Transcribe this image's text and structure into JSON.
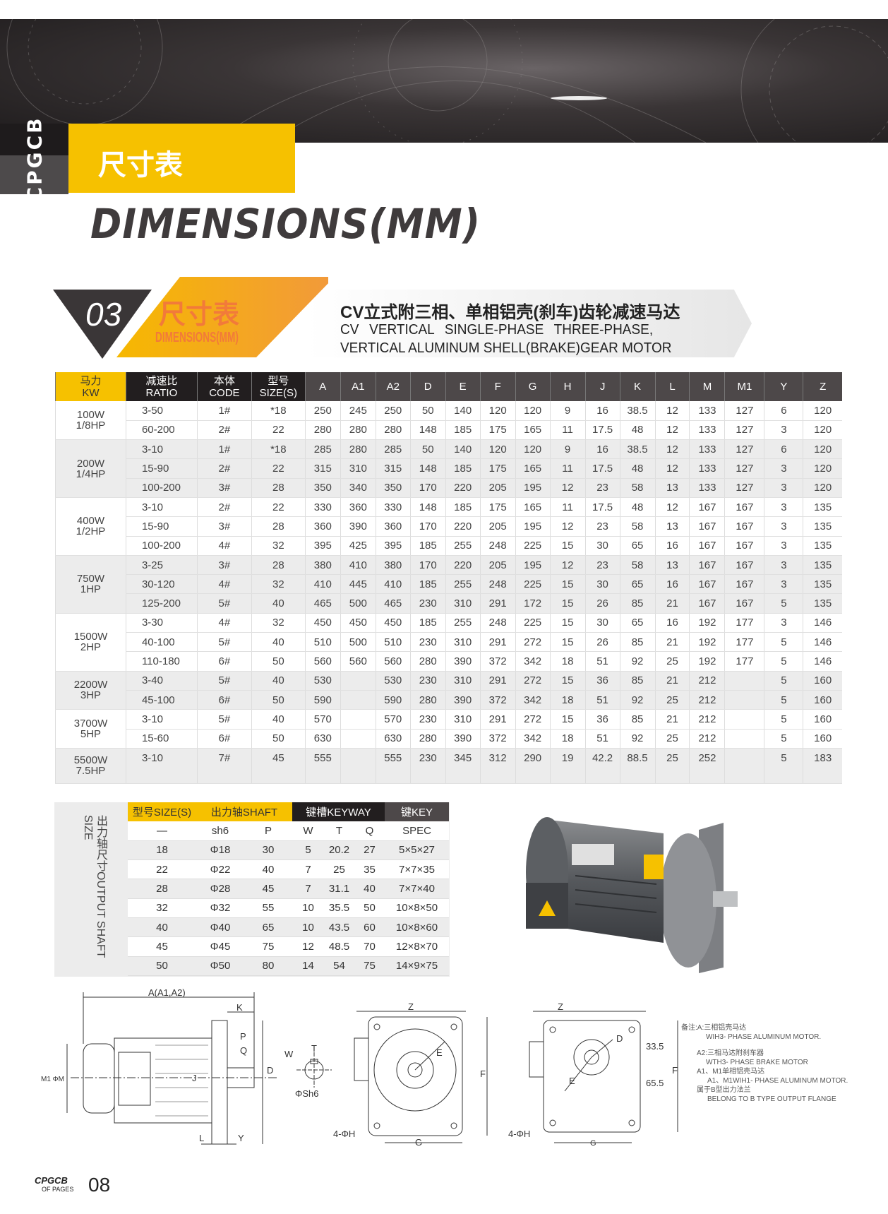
{
  "brand": "CPGCB",
  "header": {
    "title_cn": "尺寸表",
    "title_en": "DIMENSIONS(MM)"
  },
  "section": {
    "number": "03",
    "title_cn": "尺寸表",
    "title_en": "DIMENSIONS(MM)",
    "product_cn": "CV立式附三相、单相铝壳(刹车)齿轮减速马达",
    "product_en_1": "CV VERTICAL SINGLE-PHASE THREE-PHASE,",
    "product_en_2": "VERTICAL ALUMINUM SHELL(BRAKE)GEAR MOTOR"
  },
  "colors": {
    "accent": "#f6c100",
    "dark": "#221e1f",
    "header_gray": "#4d4849",
    "orange": "#f27a3a",
    "row_gray": "#ececec"
  },
  "main_table": {
    "headers": [
      {
        "cn": "马力",
        "en": "KW"
      },
      {
        "cn": "减速比",
        "en": "RATIO"
      },
      {
        "cn": "本体",
        "en": "CODE"
      },
      {
        "cn": "型号",
        "en": "SIZE(S)"
      },
      {
        "en": "A"
      },
      {
        "en": "A1"
      },
      {
        "en": "A2"
      },
      {
        "en": "D"
      },
      {
        "en": "E"
      },
      {
        "en": "F"
      },
      {
        "en": "G"
      },
      {
        "en": "H"
      },
      {
        "en": "J"
      },
      {
        "en": "K"
      },
      {
        "en": "L"
      },
      {
        "en": "M"
      },
      {
        "en": "M1"
      },
      {
        "en": "Y"
      },
      {
        "en": "Z"
      }
    ],
    "groups": [
      {
        "power": "100W",
        "hp": "1/8HP",
        "rows": [
          [
            "3-50",
            "1#",
            "*18",
            "250",
            "245",
            "250",
            "50",
            "140",
            "120",
            "120",
            "9",
            "16",
            "38.5",
            "12",
            "133",
            "127",
            "6",
            "120"
          ],
          [
            "60-200",
            "2#",
            "22",
            "280",
            "280",
            "280",
            "148",
            "185",
            "175",
            "165",
            "11",
            "17.5",
            "48",
            "12",
            "133",
            "127",
            "3",
            "120"
          ]
        ]
      },
      {
        "power": "200W",
        "hp": "1/4HP",
        "rows": [
          [
            "3-10",
            "1#",
            "*18",
            "285",
            "280",
            "285",
            "50",
            "140",
            "120",
            "120",
            "9",
            "16",
            "38.5",
            "12",
            "133",
            "127",
            "6",
            "120"
          ],
          [
            "15-90",
            "2#",
            "22",
            "315",
            "310",
            "315",
            "148",
            "185",
            "175",
            "165",
            "11",
            "17.5",
            "48",
            "12",
            "133",
            "127",
            "3",
            "120"
          ],
          [
            "100-200",
            "3#",
            "28",
            "350",
            "340",
            "350",
            "170",
            "220",
            "205",
            "195",
            "12",
            "23",
            "58",
            "13",
            "133",
            "127",
            "3",
            "120"
          ]
        ]
      },
      {
        "power": "400W",
        "hp": "1/2HP",
        "rows": [
          [
            "3-10",
            "2#",
            "22",
            "330",
            "360",
            "330",
            "148",
            "185",
            "175",
            "165",
            "11",
            "17.5",
            "48",
            "12",
            "167",
            "167",
            "3",
            "135"
          ],
          [
            "15-90",
            "3#",
            "28",
            "360",
            "390",
            "360",
            "170",
            "220",
            "205",
            "195",
            "12",
            "23",
            "58",
            "13",
            "167",
            "167",
            "3",
            "135"
          ],
          [
            "100-200",
            "4#",
            "32",
            "395",
            "425",
            "395",
            "185",
            "255",
            "248",
            "225",
            "15",
            "30",
            "65",
            "16",
            "167",
            "167",
            "3",
            "135"
          ]
        ]
      },
      {
        "power": "750W",
        "hp": "1HP",
        "rows": [
          [
            "3-25",
            "3#",
            "28",
            "380",
            "410",
            "380",
            "170",
            "220",
            "205",
            "195",
            "12",
            "23",
            "58",
            "13",
            "167",
            "167",
            "3",
            "135"
          ],
          [
            "30-120",
            "4#",
            "32",
            "410",
            "445",
            "410",
            "185",
            "255",
            "248",
            "225",
            "15",
            "30",
            "65",
            "16",
            "167",
            "167",
            "3",
            "135"
          ],
          [
            "125-200",
            "5#",
            "40",
            "465",
            "500",
            "465",
            "230",
            "310",
            "291",
            "172",
            "15",
            "26",
            "85",
            "21",
            "167",
            "167",
            "5",
            "135"
          ]
        ]
      },
      {
        "power": "1500W",
        "hp": "2HP",
        "rows": [
          [
            "3-30",
            "4#",
            "32",
            "450",
            "450",
            "450",
            "185",
            "255",
            "248",
            "225",
            "15",
            "30",
            "65",
            "16",
            "192",
            "177",
            "3",
            "146"
          ],
          [
            "40-100",
            "5#",
            "40",
            "510",
            "500",
            "510",
            "230",
            "310",
            "291",
            "272",
            "15",
            "26",
            "85",
            "21",
            "192",
            "177",
            "5",
            "146"
          ],
          [
            "110-180",
            "6#",
            "50",
            "560",
            "560",
            "560",
            "280",
            "390",
            "372",
            "342",
            "18",
            "51",
            "92",
            "25",
            "192",
            "177",
            "5",
            "146"
          ]
        ]
      },
      {
        "power": "2200W",
        "hp": "3HP",
        "rows": [
          [
            "3-40",
            "5#",
            "40",
            "530",
            "",
            "530",
            "230",
            "310",
            "291",
            "272",
            "15",
            "36",
            "85",
            "21",
            "212",
            "",
            "5",
            "160"
          ],
          [
            "45-100",
            "6#",
            "50",
            "590",
            "",
            "590",
            "280",
            "390",
            "372",
            "342",
            "18",
            "51",
            "92",
            "25",
            "212",
            "",
            "5",
            "160"
          ]
        ]
      },
      {
        "power": "3700W",
        "hp": "5HP",
        "rows": [
          [
            "3-10",
            "5#",
            "40",
            "570",
            "",
            "570",
            "230",
            "310",
            "291",
            "272",
            "15",
            "36",
            "85",
            "21",
            "212",
            "",
            "5",
            "160"
          ],
          [
            "15-60",
            "6#",
            "50",
            "630",
            "",
            "630",
            "280",
            "390",
            "372",
            "342",
            "18",
            "51",
            "92",
            "25",
            "212",
            "",
            "5",
            "160"
          ]
        ]
      },
      {
        "power": "5500W",
        "hp": "7.5HP",
        "rows": [
          [
            "3-10",
            "7#",
            "45",
            "555",
            "",
            "555",
            "230",
            "345",
            "312",
            "290",
            "19",
            "42.2",
            "88.5",
            "25",
            "252",
            "",
            "5",
            "183"
          ]
        ]
      }
    ]
  },
  "shaft_table": {
    "side_label_cn": "出力轴尺寸",
    "side_label_en": "OUTPUT SHAFT SIZE",
    "group_headers": [
      "型号SIZE(S)",
      "出力轴SHAFT",
      "键槽KEYWAY",
      "键KEY"
    ],
    "sub_headers": [
      "—",
      "sh6",
      "P",
      "W",
      "T",
      "Q",
      "SPEC"
    ],
    "rows": [
      [
        "18",
        "Φ18",
        "30",
        "5",
        "20.2",
        "27",
        "5×5×27"
      ],
      [
        "22",
        "Φ22",
        "40",
        "7",
        "25",
        "35",
        "7×7×35"
      ],
      [
        "28",
        "Φ28",
        "45",
        "7",
        "31.1",
        "40",
        "7×7×40"
      ],
      [
        "32",
        "Φ32",
        "55",
        "10",
        "35.5",
        "50",
        "10×8×50"
      ],
      [
        "40",
        "Φ40",
        "65",
        "10",
        "43.5",
        "60",
        "10×8×60"
      ],
      [
        "45",
        "Φ45",
        "75",
        "12",
        "48.5",
        "70",
        "12×8×70"
      ],
      [
        "50",
        "Φ50",
        "80",
        "14",
        "54",
        "75",
        "14×9×75"
      ]
    ]
  },
  "drawings": {
    "side": {
      "a": "A(A1,A2)",
      "k": "K",
      "p": "P",
      "q": "Q",
      "j": "J",
      "d": "D",
      "m": "M1 ΦM",
      "l": "L",
      "y": "Y"
    },
    "shaft": {
      "w": "W",
      "t": "T",
      "sh": "ΦSh6"
    },
    "front": {
      "z": "Z",
      "e": "E",
      "f": "F",
      "h": "4-ΦH",
      "g": "G"
    },
    "front_b": {
      "z": "Z",
      "d": "D",
      "v1": "33.5",
      "v2": "65.5",
      "f": "F",
      "e": "E",
      "h": "4-ΦH",
      "g": "G"
    }
  },
  "notes": [
    "备注:A:三相铝壳马达",
    "WIH3- PHASE ALUMINUM MOTOR.",
    "A2:三相马达附刹车器",
    "WTH3- PHASE BRAKE MOTOR",
    "A1、M1单相铝壳马达",
    "A1、M1WIH1- PHASE ALUMINUM MOTOR.",
    "属于B型出力法兰",
    "BELONG TO B TYPE OUTPUT FLANGE"
  ],
  "footer": {
    "brand": "CPGCB",
    "of_pages": "OF PAGES",
    "page": "08"
  }
}
